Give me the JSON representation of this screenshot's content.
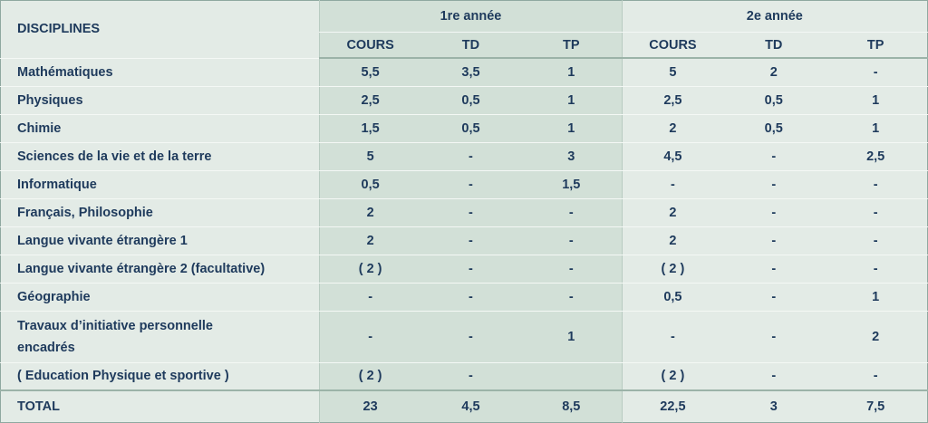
{
  "table": {
    "header": {
      "disciplines": "DISCIPLINES",
      "years": [
        "1re année",
        "2e année"
      ],
      "columns": [
        "COURS",
        "TD",
        "TP",
        "COURS",
        "TD",
        "TP"
      ]
    },
    "rows": [
      [
        "Mathématiques",
        "5,5",
        "3,5",
        "1",
        "5",
        "2",
        "-"
      ],
      [
        "Physiques",
        "2,5",
        "0,5",
        "1",
        "2,5",
        "0,5",
        "1"
      ],
      [
        "Chimie",
        "1,5",
        "0,5",
        "1",
        "2",
        "0,5",
        "1"
      ],
      [
        "Sciences de la vie et de la terre",
        "5",
        "-",
        "3",
        "4,5",
        "-",
        "2,5"
      ],
      [
        "Informatique",
        "0,5",
        "-",
        "1,5",
        "-",
        "-",
        "-"
      ],
      [
        "Français, Philosophie",
        "2",
        "-",
        "-",
        "2",
        "-",
        "-"
      ],
      [
        "Langue vivante étrangère 1",
        "2",
        "-",
        "-",
        "2",
        "-",
        "-"
      ],
      [
        "Langue vivante étrangère 2 (facultative)",
        "( 2 )",
        "-",
        "-",
        "( 2 )",
        "-",
        "-"
      ],
      [
        "Géographie",
        "-",
        "-",
        "-",
        "0,5",
        "-",
        "1"
      ],
      [
        "Travaux d’initiative personnelle encadrés",
        "-",
        "-",
        "1",
        "-",
        "-",
        "2"
      ],
      [
        "( Education Physique et sportive )",
        "( 2 )",
        "-",
        null,
        "( 2 )",
        "-",
        "-"
      ]
    ],
    "total": [
      "TOTAL",
      "23",
      "4,5",
      "8,5",
      "22,5",
      "3",
      "7,5"
    ]
  }
}
